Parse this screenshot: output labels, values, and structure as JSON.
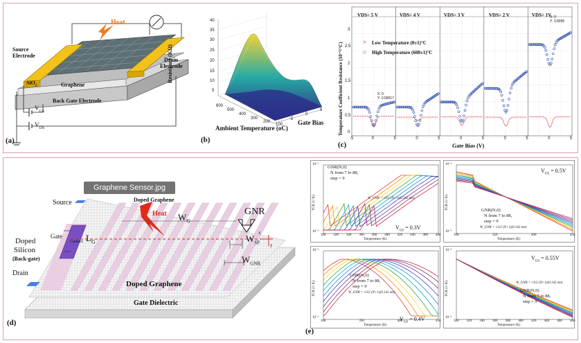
{
  "panel_a": {
    "label": "(a)",
    "heat": "Heat",
    "source": "Source\nElectrode",
    "source_1": "Source",
    "source_2": "Electrode",
    "drain_1": "Drain",
    "drain_2": "Electrode",
    "sio2": "SiO",
    "sio2_sub": "2",
    "graphene": "Graphene",
    "back_gate": "Back Gate Electrode",
    "vgs": "V",
    "vgs_sub": "GS",
    "vds": "V",
    "vds_sub": "DS"
  },
  "panel_b": {
    "label": "(b)",
    "zlabel": "Resistance (KΩ)",
    "xlabel": "Ambient Temperature (oC)",
    "ylabel": "Gate Bias",
    "zticks": [
      "40",
      "35",
      "30",
      "25",
      "20",
      "15",
      "10",
      "5"
    ],
    "xticks": [
      "600",
      "500",
      "400",
      "300",
      "200",
      "100"
    ],
    "yticks": [
      "-5",
      "0",
      "5"
    ]
  },
  "panel_c": {
    "label": "(c)",
    "ylabel": "Temperature Coefficient Resistance (10⁻³/°C)",
    "xlabel": "Gate Bias (V)",
    "legend": [
      {
        "text": "Low Temperature (0±1)°C",
        "color": "#d62020"
      },
      {
        "text": "High Temperature (600±1)°C",
        "color": "#3050b0"
      }
    ],
    "strips": [
      "VDS= 5 V",
      "VDS= 4 V",
      "VDS= 3 V",
      "VDS= 2 V",
      "VDS= 1V"
    ],
    "xticks": [
      "-5",
      "0",
      "5"
    ],
    "yticks": [
      "3",
      "2.5",
      "2",
      "1.5",
      "1",
      "0.5",
      "0"
    ],
    "annotations": [
      "X: 0\nY: 0.58917",
      "X: 0\nY: 3.8095"
    ]
  },
  "panel_d": {
    "label": "(d)",
    "file_badge": "Graphene Sensor.jpg",
    "source": "Source",
    "doped_graphene_top": "Doped Graphene",
    "heat": "Heat",
    "gnr": "GNR",
    "wg": "W",
    "wg_sub": "G",
    "gate": "Gate",
    "contact": "Contact",
    "lg": "L",
    "lg_sub": "G",
    "doped_silicon_1": "Doped",
    "doped_silicon_2": "Silicon",
    "back_gate": "(Back-gate)",
    "wsp": "W",
    "wsp_sub": "SP",
    "wgnr": "W",
    "wgnr_sub": "GNR",
    "drain": "Drain",
    "doped_graphene_bottom": "Doped Graphene",
    "gate_dielectric": "Gate Dielectric",
    "axis_x": "x",
    "axis_y": "y"
  },
  "panel_e": {
    "label": "(e)",
    "ylabel": "TCR (1/ K)",
    "xlabel": "Temperature (K)",
    "subplots": [
      {
        "vgs": "V",
        "vgs_sub": "GS",
        "vgs_val": " = 0.3V",
        "xticks": [
          "300",
          "320",
          "340",
          "360",
          "380",
          "400",
          "420",
          "440",
          "460",
          "480"
        ],
        "note1": "GNR(N,0)",
        "note2": "N from 7 to 88,",
        "note3": "step = 9",
        "formula": "W_GNR = √3/2 (N+1)(0.142 nm)"
      },
      {
        "vgs": "V",
        "vgs_sub": "GS",
        "vgs_val": " = 0.5V",
        "xticks": [
          "300",
          "350",
          "400",
          "450"
        ],
        "note1": "GNR(N,0)",
        "note2": "N from 7 to 88,",
        "note3": "step = 9",
        "formula": "W_GNR = √3/2 (N+1)(0.142 nm)"
      },
      {
        "vgs": "V",
        "vgs_sub": "GS",
        "vgs_val": " = 0.4V",
        "xticks": [
          "300",
          "350",
          "400",
          "450"
        ],
        "note1": "GNR(N,0)",
        "note2": "N from 7 to 88,",
        "note3": "step = 9",
        "formula": "W_GNR = √3/2 (N+1)(0.142 nm)"
      },
      {
        "vgs": "V",
        "vgs_sub": "GS",
        "vgs_val": " = 0.55V",
        "xticks": [
          "300",
          "320",
          "340",
          "360",
          "380",
          "400",
          "420",
          "440",
          "460",
          "480"
        ],
        "note1": "GNR(N,0)",
        "note2": "N from 7 to 88,",
        "note3": "step = 9",
        "formula": "W_GNR = √3/2 (N+1)(0.142 nm)"
      }
    ],
    "ytick_top": "10⁻²",
    "ytick_bot": "10⁻³"
  },
  "colors": {
    "electrode_gold": "#f2c21b",
    "substrate_gray": "#b8b8b8",
    "doped_silicon": "#7b4fc4",
    "doped_graphene": "#e8d0e0",
    "heat_arrow": "#e03020",
    "frame": "#d9a0a8"
  }
}
